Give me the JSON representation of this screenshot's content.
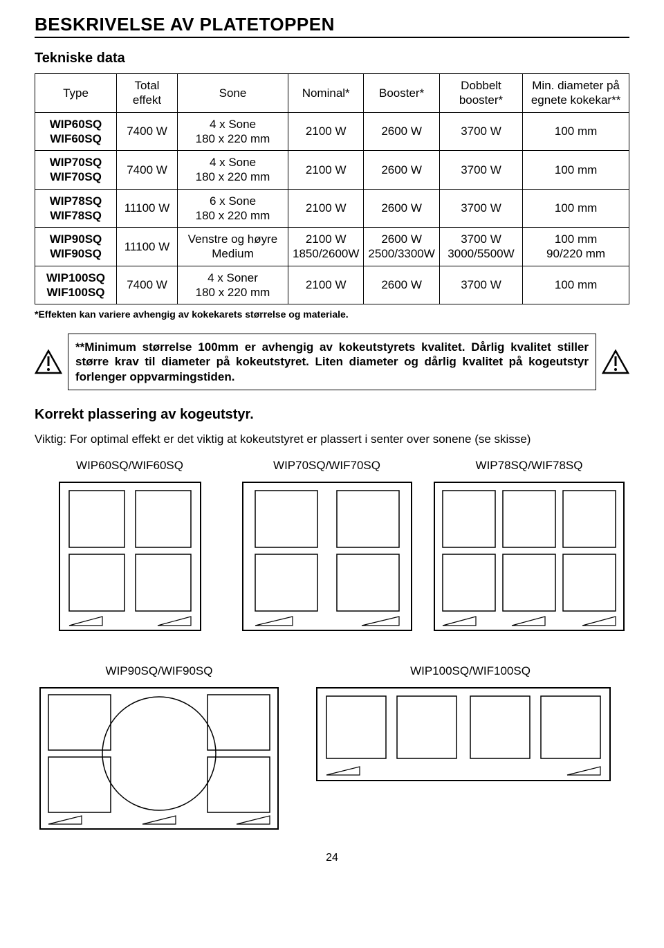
{
  "title": "BESKRIVELSE AV PLATETOPPEN",
  "subtitle": "Tekniske data",
  "headers": {
    "type": "Type",
    "total": "Total effekt",
    "sone": "Sone",
    "nominal": "Nominal*",
    "booster": "Booster*",
    "dblbooster": "Dobbelt booster*",
    "mindiam": "Min. diameter på egnete kokekar**"
  },
  "rows": [
    {
      "type": "WIP60SQ\nWIF60SQ",
      "total": "7400 W",
      "sone": "4 x Sone\n180 x 220 mm",
      "nominal": "2100 W",
      "booster": "2600 W",
      "dblbooster": "3700 W",
      "mindiam": "100 mm"
    },
    {
      "type": "WIP70SQ\nWIF70SQ",
      "total": "7400 W",
      "sone": "4 x Sone\n180 x 220 mm",
      "nominal": "2100 W",
      "booster": "2600 W",
      "dblbooster": "3700 W",
      "mindiam": "100 mm"
    },
    {
      "type": "WIP78SQ\nWIF78SQ",
      "total": "11100 W",
      "sone": "6 x Sone\n180 x 220 mm",
      "nominal": "2100 W",
      "booster": "2600 W",
      "dblbooster": "3700 W",
      "mindiam": "100 mm"
    },
    {
      "type": "WIP90SQ\nWIF90SQ",
      "total": "11100 W",
      "sone": "Venstre og høyre\nMedium",
      "nominal": "2100 W\n1850/2600W",
      "booster": "2600 W\n2500/3300W",
      "dblbooster": "3700 W\n3000/5500W",
      "mindiam": "100 mm\n90/220 mm"
    },
    {
      "type": "WIP100SQ\nWIF100SQ",
      "total": "7400 W",
      "sone": "4 x Soner\n180 x 220 mm",
      "nominal": "2100 W",
      "booster": "2600 W",
      "dblbooster": "3700 W",
      "mindiam": "100 mm"
    }
  ],
  "tableFootnote": "*Effekten kan variere avhengig av kokekarets størrelse og materiale.",
  "warningText": "**Minimum størrelse 100mm er avhengig av kokeutstyrets kvalitet. Dårlig kvalitet stiller større krav til diameter på kokeutstyret. Liten diameter og dårlig kvalitet på kogeutstyr forlenger oppvarmingstiden.",
  "placementHeading": "Korrekt plassering av kogeutstyr.",
  "placementText": "Viktig:  For optimal effekt er det viktig at kokeutstyret er plassert i senter over sonene (se skisse)",
  "diagramLabels": {
    "d60": "WIP60SQ/WIF60SQ",
    "d70": "WIP70SQ/WIF70SQ",
    "d78": "WIP78SQ/WIF78SQ",
    "d90": "WIP90SQ/WIF90SQ",
    "d100": "WIP100SQ/WIF100SQ"
  },
  "pageNumber": "24"
}
